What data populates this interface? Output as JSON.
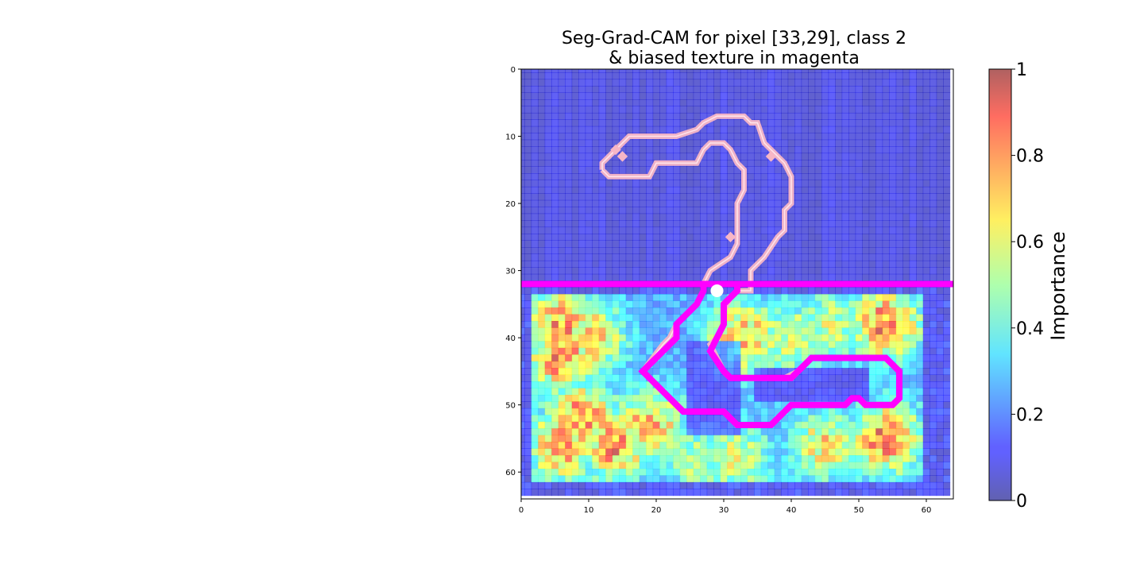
{
  "chart_data": {
    "type": "heatmap",
    "title_lines": [
      "Seg-Grad-CAM for pixel [33,29], class 2",
      "& biased texture in magenta"
    ],
    "xlabel": "",
    "ylabel": "",
    "xlim": [
      0,
      64
    ],
    "ylim": [
      64,
      0
    ],
    "x_ticks": [
      0,
      10,
      20,
      30,
      40,
      50,
      60
    ],
    "y_ticks": [
      0,
      10,
      20,
      30,
      40,
      50,
      60
    ],
    "grid": false,
    "highlight_pixel": [
      33,
      29
    ],
    "texture_boundary_row": 32,
    "colorbar": {
      "label": "Importance",
      "range": [
        0,
        1
      ],
      "ticks": [
        "0",
        "0.2",
        "0.4",
        "0.6",
        "0.8",
        "1"
      ],
      "colormap": "jet"
    },
    "hotspots": [
      {
        "x": 6,
        "y": 43,
        "v": 0.75
      },
      {
        "x": 6,
        "y": 38,
        "v": 0.72
      },
      {
        "x": 10,
        "y": 40,
        "v": 0.65
      },
      {
        "x": 9,
        "y": 52,
        "v": 0.78
      },
      {
        "x": 6,
        "y": 56,
        "v": 0.7
      },
      {
        "x": 14,
        "y": 56,
        "v": 0.75
      },
      {
        "x": 19,
        "y": 53,
        "v": 0.68
      },
      {
        "x": 33,
        "y": 40,
        "v": 0.7
      },
      {
        "x": 40,
        "y": 40,
        "v": 0.45
      },
      {
        "x": 54,
        "y": 38,
        "v": 0.78
      },
      {
        "x": 46,
        "y": 38,
        "v": 0.42
      },
      {
        "x": 54,
        "y": 55,
        "v": 0.8
      },
      {
        "x": 45,
        "y": 56,
        "v": 0.55
      },
      {
        "x": 32,
        "y": 58,
        "v": 0.45
      },
      {
        "x": 26,
        "y": 58,
        "v": 0.38
      }
    ],
    "active_region": {
      "x0": 2,
      "x1": 59,
      "y0": 34,
      "y1": 61
    },
    "object_outline_top": [
      [
        12,
        15
      ],
      [
        13,
        16
      ],
      [
        19,
        16
      ],
      [
        20,
        14
      ],
      [
        26,
        14
      ],
      [
        27,
        12
      ],
      [
        28,
        11
      ],
      [
        30,
        11
      ],
      [
        31,
        12
      ],
      [
        32,
        14
      ],
      [
        33,
        15
      ],
      [
        33,
        18
      ],
      [
        32,
        20
      ],
      [
        32,
        26
      ],
      [
        31,
        28
      ],
      [
        28,
        30
      ],
      [
        27,
        32
      ],
      [
        27,
        33
      ],
      [
        26,
        35
      ],
      [
        23,
        38
      ],
      [
        22,
        40
      ],
      [
        21,
        41
      ],
      [
        18,
        45
      ],
      [
        19,
        46
      ],
      [
        24,
        51
      ],
      [
        30,
        51
      ],
      [
        31,
        52
      ],
      [
        32,
        53
      ],
      [
        37,
        53
      ],
      [
        39,
        51
      ],
      [
        40,
        50
      ],
      [
        48,
        50
      ],
      [
        49,
        49
      ],
      [
        50,
        49
      ],
      [
        51,
        50
      ],
      [
        55,
        50
      ],
      [
        56,
        49
      ],
      [
        56,
        45
      ],
      [
        55,
        44
      ],
      [
        54,
        43
      ],
      [
        43,
        43
      ],
      [
        42,
        44
      ],
      [
        41,
        45
      ],
      [
        39,
        46
      ],
      [
        31,
        46
      ],
      [
        30,
        45
      ],
      [
        29,
        43
      ],
      [
        28,
        41
      ],
      [
        29,
        40
      ],
      [
        30,
        38
      ],
      [
        30,
        36
      ],
      [
        31,
        34
      ],
      [
        32,
        33
      ],
      [
        34,
        33
      ],
      [
        34,
        30
      ],
      [
        36,
        28
      ],
      [
        38,
        25
      ],
      [
        39,
        24
      ],
      [
        39,
        21
      ],
      [
        40,
        20
      ],
      [
        40,
        16
      ],
      [
        39,
        14
      ],
      [
        36,
        11
      ],
      [
        35,
        8
      ],
      [
        34,
        8
      ],
      [
        33,
        7
      ],
      [
        29,
        7
      ],
      [
        27,
        8
      ],
      [
        26,
        9
      ],
      [
        23,
        10
      ],
      [
        16,
        10
      ],
      [
        15,
        11
      ],
      [
        13,
        13
      ],
      [
        12,
        14
      ],
      [
        12,
        15
      ]
    ],
    "object_outline_bottom": [
      [
        27,
        32
      ],
      [
        27,
        33
      ],
      [
        26,
        35
      ],
      [
        23,
        38
      ],
      [
        23,
        40
      ],
      [
        22,
        41
      ],
      [
        18,
        45
      ],
      [
        19,
        46
      ],
      [
        24,
        51
      ],
      [
        30,
        51
      ],
      [
        32,
        53
      ],
      [
        37,
        53
      ],
      [
        40,
        50
      ],
      [
        48,
        50
      ],
      [
        49,
        49
      ],
      [
        50,
        49
      ],
      [
        51,
        50
      ],
      [
        55,
        50
      ],
      [
        56,
        49
      ],
      [
        56,
        45
      ],
      [
        54,
        43
      ],
      [
        43,
        43
      ],
      [
        40,
        46
      ],
      [
        31,
        46
      ],
      [
        30,
        45
      ],
      [
        28,
        42
      ],
      [
        30,
        38
      ],
      [
        30,
        35
      ],
      [
        31,
        34
      ],
      [
        32,
        33
      ],
      [
        32,
        32
      ]
    ],
    "small_marks": [
      [
        14,
        12
      ],
      [
        15,
        13
      ],
      [
        37,
        13
      ],
      [
        31,
        25
      ]
    ]
  }
}
